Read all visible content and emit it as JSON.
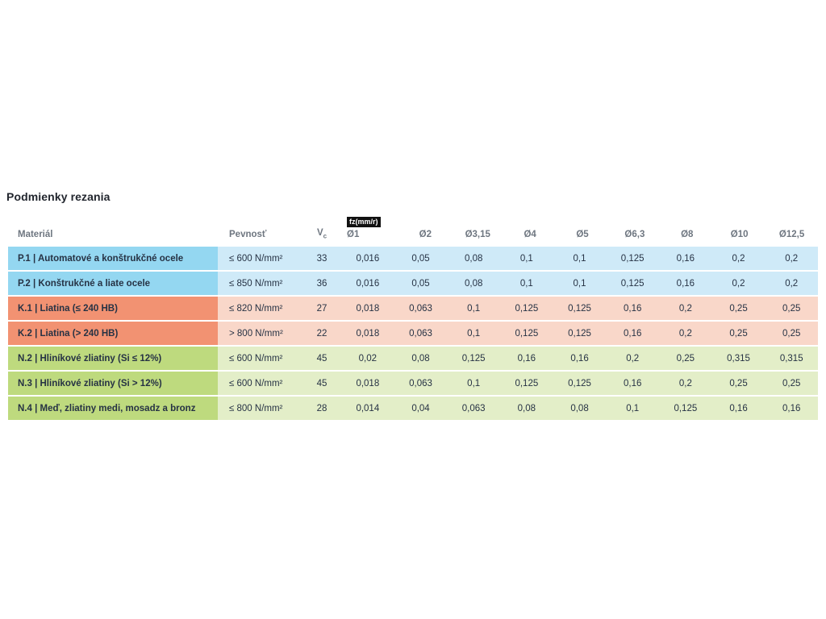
{
  "title": "Podmienky rezania",
  "colors": {
    "page_bg": "#ffffff",
    "title_text": "#22262e",
    "header_text": "#6e7680",
    "row_text": "#263244",
    "badge_bg": "#111111",
    "badge_text": "#ffffff"
  },
  "table": {
    "columns": {
      "material": "Materiál",
      "strength": "Pevnosť",
      "vc_main": "V",
      "vc_sub": "c",
      "fz_badge": "fz(mm/r)",
      "diameters": [
        "Ø1",
        "Ø2",
        "Ø3,15",
        "Ø4",
        "Ø5",
        "Ø6,3",
        "Ø8",
        "Ø10",
        "Ø12,5"
      ]
    },
    "groups": {
      "P": {
        "label_bg": "#94d7f1",
        "row_bg": "#cfeaf8"
      },
      "K": {
        "label_bg": "#f29272",
        "row_bg": "#f9d7c9"
      },
      "N": {
        "label_bg": "#beda7e",
        "row_bg": "#e3eec8"
      }
    },
    "rows": [
      {
        "group": "P",
        "material": "P.1 | Automatové a konštrukčné ocele",
        "strength": "≤ 600 N/mm²",
        "vc": "33",
        "values": [
          "0,016",
          "0,05",
          "0,08",
          "0,1",
          "0,1",
          "0,125",
          "0,16",
          "0,2",
          "0,2"
        ]
      },
      {
        "group": "P",
        "material": "P.2 | Konštrukčné a liate ocele",
        "strength": "≤ 850 N/mm²",
        "vc": "36",
        "values": [
          "0,016",
          "0,05",
          "0,08",
          "0,1",
          "0,1",
          "0,125",
          "0,16",
          "0,2",
          "0,2"
        ]
      },
      {
        "group": "K",
        "material": "K.1 | Liatina (≤ 240 HB)",
        "strength": "≤ 820 N/mm²",
        "vc": "27",
        "values": [
          "0,018",
          "0,063",
          "0,1",
          "0,125",
          "0,125",
          "0,16",
          "0,2",
          "0,25",
          "0,25"
        ]
      },
      {
        "group": "K",
        "material": "K.2 | Liatina (> 240 HB)",
        "strength": "> 800 N/mm²",
        "vc": "22",
        "values": [
          "0,018",
          "0,063",
          "0,1",
          "0,125",
          "0,125",
          "0,16",
          "0,2",
          "0,25",
          "0,25"
        ]
      },
      {
        "group": "N",
        "material": "N.2 | Hliníkové zliatiny (Si ≤ 12%)",
        "strength": "≤ 600 N/mm²",
        "vc": "45",
        "values": [
          "0,02",
          "0,08",
          "0,125",
          "0,16",
          "0,16",
          "0,2",
          "0,25",
          "0,315",
          "0,315"
        ]
      },
      {
        "group": "N",
        "material": "N.3 | Hliníkové zliatiny (Si > 12%)",
        "strength": "≤ 600 N/mm²",
        "vc": "45",
        "values": [
          "0,018",
          "0,063",
          "0,1",
          "0,125",
          "0,125",
          "0,16",
          "0,2",
          "0,25",
          "0,25"
        ]
      },
      {
        "group": "N",
        "material": "N.4 | Meď, zliatiny medi, mosadz a bronz",
        "strength": "≤ 800 N/mm²",
        "vc": "28",
        "values": [
          "0,014",
          "0,04",
          "0,063",
          "0,08",
          "0,08",
          "0,1",
          "0,125",
          "0,16",
          "0,16"
        ]
      }
    ]
  }
}
